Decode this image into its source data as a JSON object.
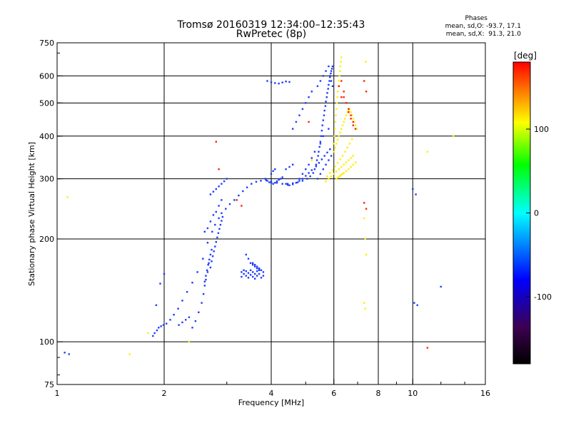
{
  "title": {
    "line1": "Tromsø 20160319 12:34:00–12:35:43",
    "line2": "RwPretec (8p)"
  },
  "stats": {
    "heading": "Phases",
    "o_mode": "mean, sd,O: -93.7, 17.1",
    "x_mode": "mean, sd,X:  91.3, 21.0"
  },
  "colorbar": {
    "unit": "[deg]",
    "ticks": [
      "100",
      "0",
      "-100"
    ],
    "range": [
      -180,
      180
    ],
    "colormap": [
      "#000000",
      "#3c0050",
      "#0000ff",
      "#00ffff",
      "#00ff00",
      "#ffff00",
      "#ff0000"
    ]
  },
  "chart_data": {
    "type": "scatter",
    "xlabel": "Frequency [MHz]",
    "ylabel": "Stationary phase Virtual Height [km]",
    "xscale": "log",
    "yscale": "log",
    "xlim": [
      1,
      16
    ],
    "ylim": [
      75,
      750
    ],
    "xticks": [
      "1",
      "2",
      "4",
      "6",
      "8",
      "10",
      "16"
    ],
    "yticks": [
      "750",
      "600",
      "500",
      "400",
      "300",
      "200",
      "100",
      "75"
    ],
    "grid": true,
    "series": [
      {
        "mode": "O",
        "color": "#1e3cff",
        "x": [
          1.05,
          1.08,
          1.86,
          1.88,
          1.91,
          1.93,
          1.96,
          1.99,
          2.03,
          2.08,
          2.13,
          2.19,
          2.25,
          2.32,
          2.4,
          2.48,
          2.57,
          2.65,
          2.73,
          2.78,
          2.85,
          2.9,
          2.98,
          3.06,
          3.15,
          3.24,
          3.33,
          3.42,
          3.52,
          3.63,
          3.74,
          3.87,
          4.0,
          4.15,
          4.3,
          4.45,
          4.6,
          4.75,
          4.9,
          5.05,
          5.15,
          5.25,
          5.3,
          5.35,
          5.38,
          5.42,
          5.44,
          5.47,
          5.5,
          5.53,
          5.55,
          5.57,
          5.6,
          5.63,
          5.65,
          5.68,
          5.7,
          5.73,
          5.75,
          5.78,
          5.8,
          5.83,
          5.85,
          5.88,
          5.9,
          5.93,
          5.95,
          1.9,
          1.95,
          2.0,
          2.6,
          2.65,
          2.7,
          2.75,
          2.8,
          2.85,
          2.9,
          2.7,
          2.75,
          2.8,
          2.85,
          2.9,
          2.95,
          3.0,
          2.7,
          2.72,
          2.74,
          2.76,
          2.78,
          2.8,
          2.82,
          2.84,
          2.86,
          2.88,
          2.9,
          2.92,
          2.6,
          2.62,
          2.64,
          2.66,
          2.68,
          2.7,
          2.72,
          3.3,
          3.35,
          3.4,
          3.45,
          3.5,
          3.55,
          3.6,
          3.65,
          3.7,
          3.75,
          3.8,
          3.3,
          3.35,
          3.4,
          3.45,
          3.5,
          3.55,
          3.6,
          3.65,
          3.7,
          3.9,
          4.0,
          4.1,
          4.2,
          4.3,
          4.4,
          4.5,
          4.4,
          4.5,
          4.6,
          4.8,
          4.9,
          5.0,
          5.1,
          5.2,
          5.3,
          5.5,
          5.6,
          5.8,
          4.0,
          4.05,
          4.1,
          3.85,
          3.9,
          3.95,
          4.0,
          4.05,
          4.1,
          4.15,
          4.2,
          4.25,
          4.3,
          4.4,
          4.45,
          4.5,
          4.6,
          4.7,
          4.8,
          4.9,
          5.0,
          5.1,
          5.2,
          5.35,
          5.45,
          5.55,
          5.65,
          5.75,
          5.85,
          3.4,
          3.45,
          3.5,
          3.55,
          3.6,
          3.65,
          3.7,
          3.55,
          3.6,
          3.65,
          3.7,
          3.75,
          3.8,
          4.6,
          4.7,
          4.8,
          4.9,
          5.0,
          5.1,
          5.2,
          5.4,
          5.5,
          5.6,
          5.7,
          5.8,
          5.85,
          5.9,
          5.95,
          5.4,
          5.5,
          5.6,
          5.7,
          5.8,
          5.9,
          2.4,
          2.45,
          2.5,
          2.55,
          2.58,
          2.6,
          2.62,
          2.65,
          2.67,
          2.2,
          2.25,
          2.3,
          2.35,
          10.0,
          10.2,
          12.0,
          10.1,
          10.3
        ],
        "y": [
          93,
          92,
          104,
          106,
          108,
          110,
          111,
          112,
          113,
          116,
          120,
          125,
          132,
          140,
          149,
          160,
          175,
          195,
          210,
          220,
          230,
          238,
          245,
          253,
          260,
          268,
          276,
          283,
          290,
          294,
          296,
          297,
          295,
          292,
          290,
          290,
          291,
          293,
          296,
          300,
          305,
          312,
          320,
          330,
          340,
          350,
          360,
          372,
          385,
          400,
          415,
          430,
          445,
          460,
          475,
          490,
          505,
          520,
          535,
          550,
          565,
          580,
          595,
          610,
          620,
          630,
          640,
          128,
          148,
          158,
          210,
          215,
          225,
          235,
          240,
          250,
          260,
          270,
          275,
          280,
          285,
          290,
          295,
          300,
          165,
          172,
          178,
          184,
          190,
          196,
          202,
          208,
          214,
          220,
          226,
          232,
          150,
          156,
          162,
          168,
          174,
          180,
          186,
          155,
          158,
          156,
          154,
          157,
          155,
          153,
          156,
          158,
          154,
          156,
          160,
          162,
          161,
          159,
          162,
          160,
          158,
          161,
          163,
          580,
          575,
          572,
          570,
          574,
          578,
          576,
          320,
          325,
          330,
          300,
          310,
          320,
          330,
          345,
          360,
          380,
          400,
          420,
          310,
          316,
          320,
          300,
          296,
          293,
          292,
          290,
          292,
          295,
          298,
          300,
          303,
          290,
          288,
          287,
          289,
          292,
          296,
          300,
          306,
          312,
          318,
          326,
          334,
          342,
          350,
          358,
          366,
          180,
          175,
          170,
          168,
          166,
          164,
          162,
          170,
          168,
          166,
          164,
          162,
          160,
          420,
          440,
          460,
          480,
          500,
          520,
          540,
          560,
          580,
          600,
          620,
          640,
          600,
          580,
          560,
          300,
          310,
          320,
          330,
          340,
          350,
          110,
          115,
          122,
          130,
          138,
          146,
          152,
          160,
          170,
          112,
          114,
          116,
          118,
          280,
          270,
          145,
          130,
          128
        ]
      },
      {
        "mode": "X",
        "color": "#ffee00",
        "x": [
          5.7,
          5.8,
          5.9,
          6.0,
          6.1,
          6.2,
          6.3,
          6.4,
          6.5,
          6.6,
          6.7,
          6.8,
          5.75,
          5.85,
          5.95,
          6.05,
          6.15,
          6.25,
          6.35,
          6.45,
          6.55,
          6.65,
          6.75,
          6.0,
          6.05,
          6.1,
          6.15,
          6.2,
          6.25,
          6.3,
          6.35,
          6.4,
          6.45,
          6.5,
          6.55,
          6.6,
          6.65,
          6.7,
          6.75,
          6.8,
          6.85,
          6.9,
          6.95,
          6.1,
          6.15,
          6.2,
          6.25,
          6.3,
          6.35,
          6.4,
          6.5,
          6.6,
          6.7,
          6.8,
          6.9,
          6.0,
          6.02,
          6.04,
          6.06,
          6.08,
          6.1,
          6.12,
          6.14,
          6.16,
          6.18,
          6.2,
          6.22,
          6.24,
          6.26,
          6.28,
          6.3,
          7.3,
          7.35,
          7.4,
          7.3,
          7.35,
          7.38,
          5.2,
          2.35,
          1.8,
          1.6,
          1.07,
          13.0,
          11.0
        ],
        "y": [
          295,
          300,
          305,
          310,
          315,
          320,
          325,
          330,
          335,
          340,
          345,
          350,
          305,
          312,
          318,
          326,
          334,
          342,
          350,
          360,
          370,
          380,
          392,
          360,
          370,
          380,
          390,
          400,
          410,
          420,
          430,
          440,
          450,
          460,
          470,
          475,
          480,
          470,
          460,
          450,
          440,
          430,
          420,
          300,
          302,
          304,
          306,
          308,
          310,
          312,
          316,
          320,
          325,
          330,
          335,
          380,
          400,
          420,
          440,
          460,
          480,
          500,
          520,
          540,
          560,
          580,
          600,
          620,
          640,
          660,
          680,
          230,
          200,
          180,
          130,
          125,
          660,
          340,
          100,
          106,
          92,
          265,
          400,
          360
        ]
      },
      {
        "mode": "mixed",
        "color": "#ff2000",
        "x": [
          6.3,
          6.4,
          6.5,
          6.6,
          6.7,
          6.8,
          6.9,
          6.2,
          6.3,
          6.4,
          6.5,
          6.6,
          6.7,
          6.8,
          7.3,
          7.4,
          7.3,
          7.4,
          2.8,
          3.2,
          3.3,
          2.85,
          5.1,
          11.0
        ],
        "y": [
          520,
          540,
          500,
          480,
          460,
          440,
          420,
          560,
          580,
          520,
          500,
          470,
          450,
          430,
          255,
          245,
          580,
          540,
          385,
          260,
          250,
          320,
          440,
          96
        ]
      }
    ]
  }
}
